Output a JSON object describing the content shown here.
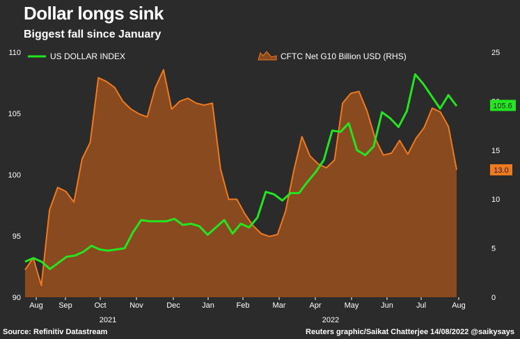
{
  "title": "Dollar longs sink",
  "subtitle": "Biggest fall since January",
  "footer": {
    "source": "Source: Refinitiv Datastream",
    "credit": "Reuters graphic/Saikat Chatterjee 14/08/2022 @saikysays"
  },
  "colors": {
    "background": "#2b2b2b",
    "dollar_line": "#22e61e",
    "cftc_fill": "#8a4a20",
    "cftc_line": "#f07a1e"
  },
  "chart_data": {
    "type": "line",
    "x_axis": {
      "tick_labels": [
        "Aug",
        "Sep",
        "Oct",
        "Nov",
        "Dec",
        "Jan",
        "Feb",
        "Mar",
        "Apr",
        "May",
        "Jun",
        "Jul",
        "Aug"
      ],
      "year_labels": [
        "2021",
        "2022"
      ]
    },
    "y_left": {
      "ylim": [
        90,
        110
      ],
      "ticks": [
        90,
        95,
        100,
        105,
        110
      ]
    },
    "y_right": {
      "ylim": [
        0,
        25
      ],
      "ticks": [
        0,
        5,
        10,
        15,
        20,
        25
      ]
    },
    "grid": false,
    "legend_position": "top",
    "series": [
      {
        "name": "US DOLLAR INDEX",
        "type": "line",
        "axis": "left",
        "end_label": "105.6",
        "values": [
          92.9,
          93.2,
          92.9,
          92.3,
          92.8,
          93.3,
          93.4,
          93.7,
          94.2,
          93.9,
          93.8,
          93.9,
          94.0,
          95.3,
          96.3,
          96.2,
          96.2,
          96.2,
          96.4,
          95.9,
          96.0,
          95.8,
          95.1,
          95.7,
          96.3,
          95.2,
          96.0,
          95.7,
          96.5,
          98.6,
          98.4,
          97.9,
          98.5,
          98.5,
          99.4,
          100.2,
          101.2,
          103.6,
          103.5,
          104.2,
          102.0,
          101.6,
          102.3,
          105.1,
          104.6,
          103.9,
          105.2,
          108.2,
          107.4,
          106.4,
          105.4,
          106.5,
          105.6
        ]
      },
      {
        "name": "CFTC Net G10 Billion USD (RHS)",
        "type": "area",
        "axis": "right",
        "end_label": "13.0",
        "values": [
          2.8,
          4.0,
          1.2,
          8.9,
          11.2,
          10.8,
          9.7,
          14.1,
          15.8,
          22.4,
          22.0,
          21.4,
          20.0,
          19.2,
          18.7,
          18.4,
          21.4,
          23.2,
          19.2,
          20.0,
          20.3,
          19.8,
          19.6,
          19.8,
          13.1,
          10.0,
          10.0,
          8.5,
          7.3,
          6.5,
          6.2,
          6.4,
          8.8,
          12.9,
          16.4,
          14.4,
          13.6,
          13.2,
          14.0,
          19.8,
          20.8,
          21.0,
          19.0,
          16.2,
          14.5,
          14.7,
          16.0,
          14.6,
          16.2,
          17.3,
          19.3,
          18.9,
          17.4,
          13.0
        ]
      }
    ]
  }
}
